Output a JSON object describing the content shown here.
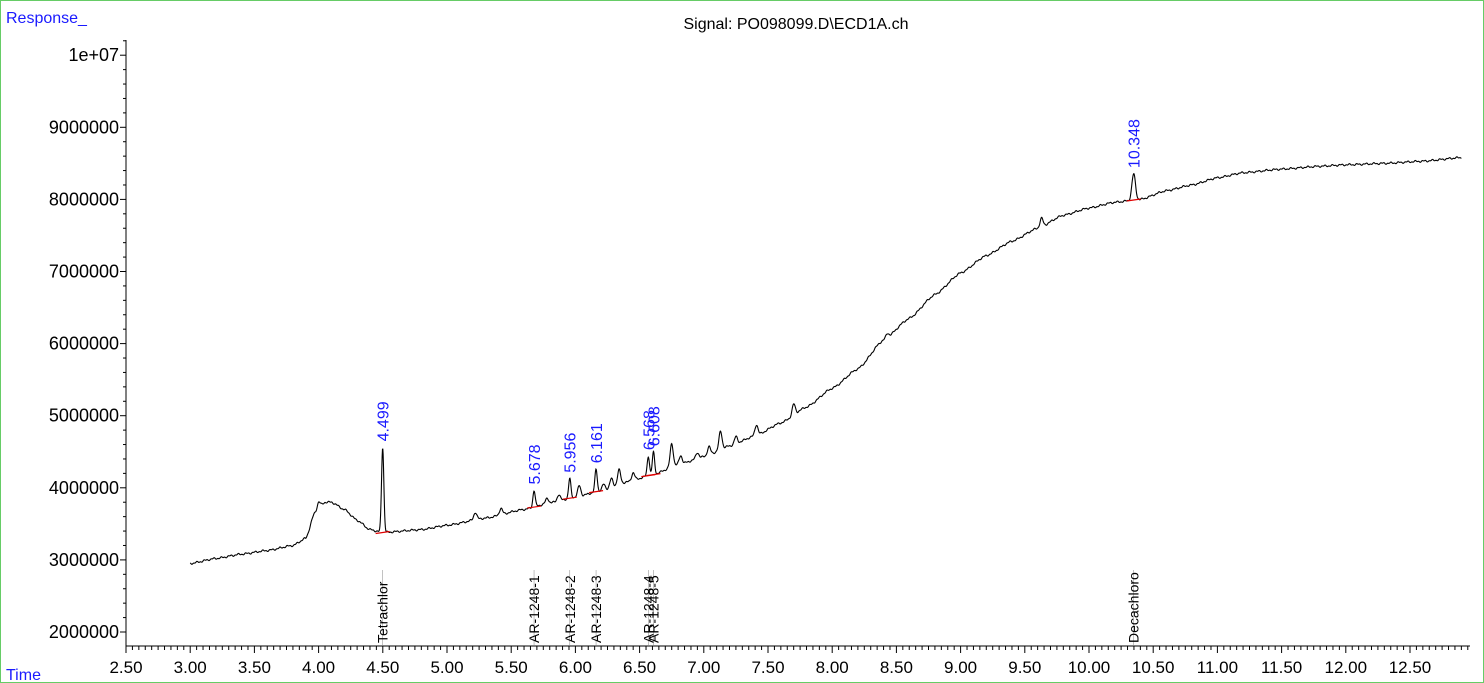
{
  "chart_data": {
    "type": "line",
    "title": "Signal: PO098099.D\\ECD1A.ch",
    "ylabel": "Response_",
    "xlabel": "Time",
    "xlim": [
      2.5,
      12.9
    ],
    "ylim": [
      1800000,
      10300000
    ],
    "x_ticks": [
      "2.50",
      "3.00",
      "3.50",
      "4.00",
      "4.50",
      "5.00",
      "5.50",
      "6.00",
      "6.50",
      "7.00",
      "7.50",
      "8.00",
      "8.50",
      "9.00",
      "9.50",
      "10.00",
      "10.50",
      "11.00",
      "11.50",
      "12.00",
      "12.50"
    ],
    "y_ticks": [
      {
        "value": 2000000,
        "label": "2000000"
      },
      {
        "value": 3000000,
        "label": "3000000"
      },
      {
        "value": 4000000,
        "label": "4000000"
      },
      {
        "value": 5000000,
        "label": "5000000"
      },
      {
        "value": 6000000,
        "label": "6000000"
      },
      {
        "value": 7000000,
        "label": "7000000"
      },
      {
        "value": 8000000,
        "label": "8000000"
      },
      {
        "value": 9000000,
        "label": "9000000"
      },
      {
        "value": 10000000,
        "label": "1e+07"
      }
    ],
    "baseline": [
      [
        3.0,
        2950000
      ],
      [
        3.2,
        3020000
      ],
      [
        3.4,
        3080000
      ],
      [
        3.6,
        3130000
      ],
      [
        3.8,
        3200000
      ],
      [
        3.9,
        3300000
      ],
      [
        3.97,
        3650000
      ],
      [
        4.05,
        3800000
      ],
      [
        4.1,
        3800000
      ],
      [
        4.2,
        3700000
      ],
      [
        4.3,
        3550000
      ],
      [
        4.4,
        3420000
      ],
      [
        4.5,
        3380000
      ],
      [
        4.8,
        3420000
      ],
      [
        5.0,
        3480000
      ],
      [
        5.3,
        3580000
      ],
      [
        5.6,
        3700000
      ],
      [
        5.8,
        3790000
      ],
      [
        6.0,
        3870000
      ],
      [
        6.2,
        3960000
      ],
      [
        6.4,
        4080000
      ],
      [
        6.6,
        4180000
      ],
      [
        6.8,
        4320000
      ],
      [
        7.0,
        4430000
      ],
      [
        7.2,
        4580000
      ],
      [
        7.4,
        4720000
      ],
      [
        7.6,
        4900000
      ],
      [
        7.8,
        5120000
      ],
      [
        8.0,
        5380000
      ],
      [
        8.2,
        5650000
      ],
      [
        8.4,
        6050000
      ],
      [
        8.6,
        6350000
      ],
      [
        8.8,
        6680000
      ],
      [
        9.0,
        6980000
      ],
      [
        9.2,
        7220000
      ],
      [
        9.4,
        7420000
      ],
      [
        9.6,
        7600000
      ],
      [
        9.8,
        7780000
      ],
      [
        10.0,
        7880000
      ],
      [
        10.2,
        7960000
      ],
      [
        10.4,
        8000000
      ],
      [
        10.6,
        8120000
      ],
      [
        10.8,
        8200000
      ],
      [
        11.0,
        8300000
      ],
      [
        11.2,
        8370000
      ],
      [
        11.5,
        8420000
      ],
      [
        11.8,
        8460000
      ],
      [
        12.0,
        8480000
      ],
      [
        12.3,
        8500000
      ],
      [
        12.6,
        8530000
      ],
      [
        12.9,
        8580000
      ]
    ],
    "minor_peaks": [
      [
        4.0,
        100000
      ],
      [
        5.22,
        100000
      ],
      [
        5.42,
        90000
      ],
      [
        5.78,
        70000
      ],
      [
        5.87,
        90000
      ],
      [
        6.03,
        150000
      ],
      [
        6.22,
        80000
      ],
      [
        6.28,
        120000
      ],
      [
        6.34,
        200000
      ],
      [
        6.45,
        110000
      ],
      [
        6.75,
        320000
      ],
      [
        6.82,
        120000
      ],
      [
        6.95,
        80000
      ],
      [
        7.04,
        120000
      ],
      [
        7.13,
        250000
      ],
      [
        7.25,
        100000
      ],
      [
        7.41,
        150000
      ],
      [
        7.7,
        150000
      ],
      [
        8.43,
        60000
      ],
      [
        9.63,
        120000
      ]
    ],
    "labeled_peaks": [
      {
        "rt": 4.499,
        "label": "4.499",
        "height": 1180000
      },
      {
        "rt": 5.678,
        "label": "5.678",
        "height": 230000
      },
      {
        "rt": 5.956,
        "label": "5.956",
        "height": 270000
      },
      {
        "rt": 6.161,
        "label": "6.161",
        "height": 310000
      },
      {
        "rt": 6.568,
        "label": "6.568",
        "height": 270000
      },
      {
        "rt": 6.608,
        "label": "6.608",
        "height": 310000
      },
      {
        "rt": 10.348,
        "label": "10.348",
        "height": 360000
      }
    ],
    "compound_markers": [
      {
        "rt": 4.499,
        "name": "Tetrachlor"
      },
      {
        "rt": 5.678,
        "name": "AR-1248-1"
      },
      {
        "rt": 5.956,
        "name": "AR-1248-2"
      },
      {
        "rt": 6.161,
        "name": "AR-1248-3"
      },
      {
        "rt": 6.568,
        "name": "AR-1248-4"
      },
      {
        "rt": 6.608,
        "name": "AR-1248-5"
      },
      {
        "rt": 10.348,
        "name": "Decachloro"
      }
    ],
    "colors": {
      "trace": "#000000",
      "peak_label": "#1a1aff",
      "integration": "#e00000",
      "frame": "#66cc66"
    }
  }
}
